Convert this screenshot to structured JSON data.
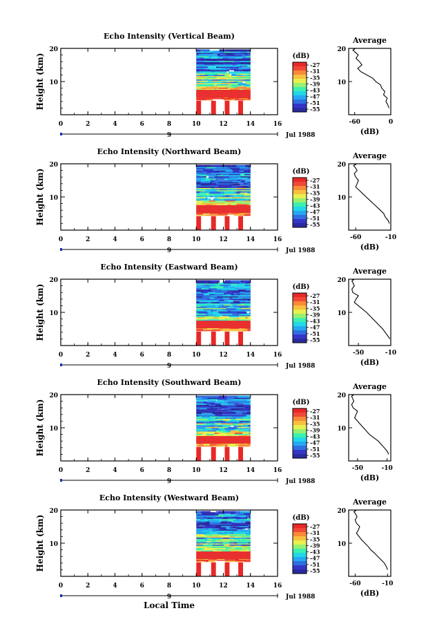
{
  "figure": {
    "xlabel": "Local Time",
    "date_label": "Jul 1988",
    "day_tick_label": "9",
    "colorbar_unit": "(dB)",
    "colorbar_ticks": [
      "-27",
      "-31",
      "-35",
      "-39",
      "-43",
      "-47",
      "-51",
      "-55"
    ],
    "colorbar_colors": [
      "#2a2aa0",
      "#3535c8",
      "#2f6fe0",
      "#25a8f0",
      "#22d8e8",
      "#3cf0b0",
      "#98f070",
      "#e8f050",
      "#f8c040",
      "#f88a38",
      "#f04838",
      "#e82828"
    ],
    "avg_title": "Average",
    "avg_xlabel": "(dB)",
    "ylabel": "Height (km)"
  },
  "chart_data": [
    {
      "type": "heatmap",
      "title": "Echo Intensity (Vertical Beam)",
      "xlabel": "Local Time",
      "ylabel": "Height (km)",
      "xlim": [
        0,
        16
      ],
      "ylim": [
        0,
        20
      ],
      "xticks": [
        "0",
        "2",
        "4",
        "6",
        "8",
        "10",
        "12",
        "14",
        "16"
      ],
      "yticks": [
        "10",
        "20"
      ],
      "data_x_range": [
        10,
        14
      ],
      "colorbar": {
        "label": "(dB)",
        "range": [
          -55,
          -27
        ]
      },
      "average_profile": {
        "title": "Average",
        "xlabel": "(dB)",
        "xlim": [
          -70,
          0
        ],
        "xticks": [
          "-60",
          "0"
        ],
        "x": [
          -3,
          -5,
          -8,
          -6,
          -12,
          -10,
          -15,
          -17,
          -25,
          -30,
          -40,
          -50,
          -55,
          -48,
          -52,
          -58,
          -54,
          -60,
          -63,
          -60,
          -62
        ],
        "y": [
          2,
          3,
          4,
          5,
          6,
          7,
          8,
          9,
          10,
          11,
          12,
          13,
          14,
          15,
          16,
          17,
          18,
          19,
          19.5,
          19.8,
          20
        ]
      }
    },
    {
      "type": "heatmap",
      "title": "Echo Intensity (Northward Beam)",
      "xlabel": "Local Time",
      "ylabel": "Height (km)",
      "xlim": [
        0,
        16
      ],
      "ylim": [
        0,
        20
      ],
      "xticks": [
        "0",
        "2",
        "4",
        "6",
        "8",
        "10",
        "12",
        "14",
        "16"
      ],
      "yticks": [
        "10",
        "20"
      ],
      "data_x_range": [
        10,
        14
      ],
      "colorbar": {
        "label": "(dB)",
        "range": [
          -55,
          -27
        ]
      },
      "average_profile": {
        "title": "Average",
        "xlabel": "(dB)",
        "xlim": [
          -70,
          -10
        ],
        "xticks": [
          "-60",
          "-10"
        ],
        "x": [
          -12,
          -14,
          -18,
          -20,
          -25,
          -30,
          -35,
          -40,
          -45,
          -50,
          -55,
          -60,
          -58,
          -56,
          -60,
          -62,
          -58,
          -61,
          -63,
          -60,
          -62
        ],
        "y": [
          2,
          3,
          4,
          5,
          6,
          7,
          8,
          9,
          10,
          11,
          12,
          13,
          14,
          15,
          16,
          17,
          18,
          19,
          19.5,
          19.8,
          20
        ]
      }
    },
    {
      "type": "heatmap",
      "title": "Echo Intensity (Eastward Beam)",
      "xlabel": "Local Time",
      "ylabel": "Height (km)",
      "xlim": [
        0,
        16
      ],
      "ylim": [
        0,
        20
      ],
      "xticks": [
        "0",
        "2",
        "4",
        "6",
        "8",
        "10",
        "12",
        "14",
        "16"
      ],
      "yticks": [
        "10",
        "20"
      ],
      "data_x_range": [
        10,
        14
      ],
      "colorbar": {
        "label": "(dB)",
        "range": [
          -55,
          -27
        ]
      },
      "average_profile": {
        "title": "Average",
        "xlabel": "(dB)",
        "xlim": [
          -62,
          -10
        ],
        "xticks": [
          "-50",
          "-10"
        ],
        "x": [
          -11,
          -14,
          -17,
          -20,
          -24,
          -28,
          -32,
          -36,
          -40,
          -45,
          -50,
          -55,
          -53,
          -50,
          -57,
          -58,
          -55,
          -57,
          -58,
          -56,
          -58
        ],
        "y": [
          2,
          3,
          4,
          5,
          6,
          7,
          8,
          9,
          10,
          11,
          12,
          13,
          14,
          15,
          16,
          17,
          18,
          19,
          19.5,
          19.8,
          20
        ]
      }
    },
    {
      "type": "heatmap",
      "title": "Echo Intensity (Southward Beam)",
      "xlabel": "Local Time",
      "ylabel": "Height (km)",
      "xlim": [
        0,
        16
      ],
      "ylim": [
        0,
        20
      ],
      "xticks": [
        "0",
        "2",
        "4",
        "6",
        "8",
        "10",
        "12",
        "14",
        "16"
      ],
      "yticks": [
        "10",
        "20"
      ],
      "data_x_range": [
        10,
        14
      ],
      "colorbar": {
        "label": "(dB)",
        "range": [
          -55,
          -27
        ]
      },
      "average_profile": {
        "title": "Average",
        "xlabel": "(dB)",
        "xlim": [
          -62,
          -5
        ],
        "xticks": [
          "-50",
          "-10"
        ],
        "x": [
          -8,
          -10,
          -14,
          -18,
          -22,
          -28,
          -34,
          -38,
          -42,
          -46,
          -50,
          -54,
          -52,
          -50,
          -56,
          -58,
          -55,
          -57,
          -58,
          -56,
          -58
        ],
        "y": [
          2,
          3,
          4,
          5,
          6,
          7,
          8,
          9,
          10,
          11,
          12,
          13,
          14,
          15,
          16,
          17,
          18,
          19,
          19.5,
          19.8,
          20
        ]
      }
    },
    {
      "type": "heatmap",
      "title": "Echo Intensity (Westward Beam)",
      "xlabel": "Local Time",
      "ylabel": "Height (km)",
      "xlim": [
        0,
        16
      ],
      "ylim": [
        0,
        20
      ],
      "xticks": [
        "0",
        "2",
        "4",
        "6",
        "8",
        "10",
        "12",
        "14",
        "16"
      ],
      "yticks": [
        "10",
        "20"
      ],
      "data_x_range": [
        10,
        14
      ],
      "colorbar": {
        "label": "(dB)",
        "range": [
          -55,
          -27
        ]
      },
      "average_profile": {
        "title": "Average",
        "xlabel": "(dB)",
        "xlim": [
          -70,
          -5
        ],
        "xticks": [
          "-60",
          "-10"
        ],
        "x": [
          -10,
          -12,
          -15,
          -20,
          -25,
          -30,
          -36,
          -40,
          -45,
          -50,
          -54,
          -58,
          -55,
          -53,
          -58,
          -60,
          -57,
          -60,
          -62,
          -59,
          -61
        ],
        "y": [
          2,
          3,
          4,
          5,
          6,
          7,
          8,
          9,
          10,
          11,
          12,
          13,
          14,
          15,
          16,
          17,
          18,
          19,
          19.5,
          19.8,
          20
        ]
      }
    }
  ]
}
